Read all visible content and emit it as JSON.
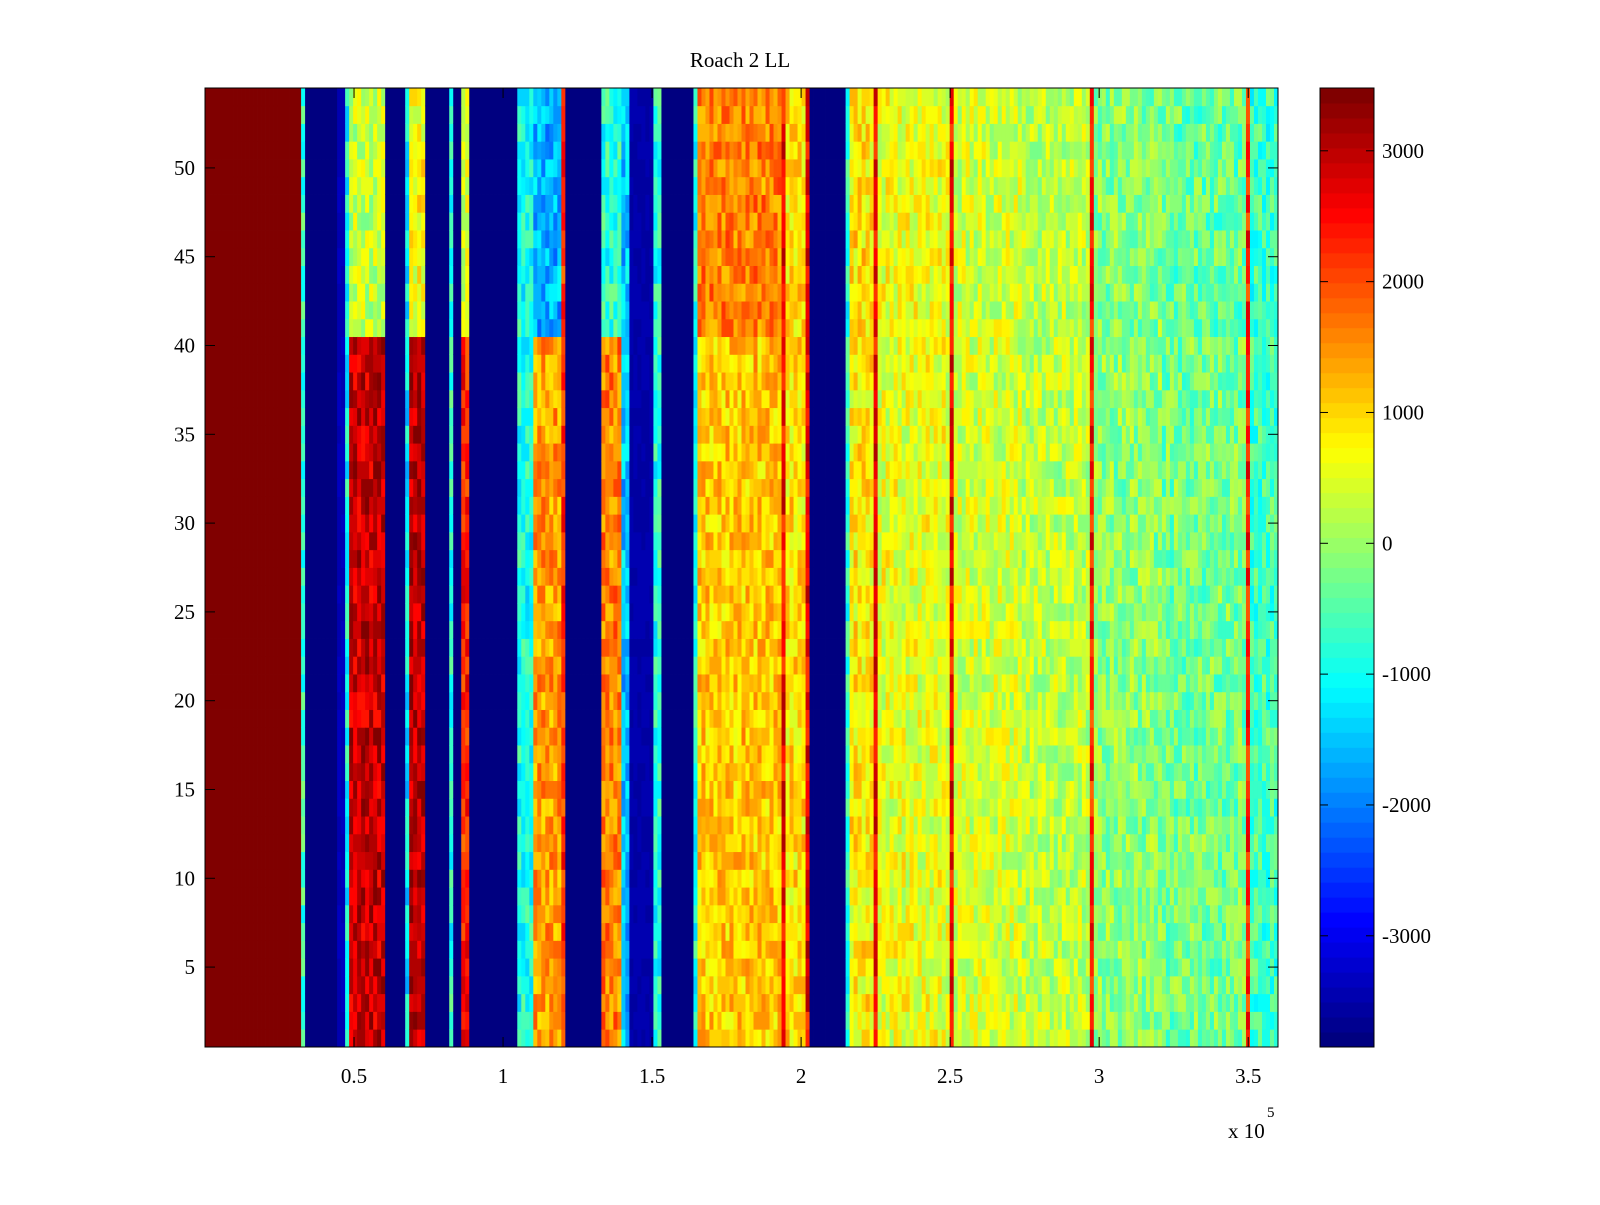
{
  "chart_data": {
    "type": "heatmap",
    "title": "Roach 2 LL",
    "xlabel": "",
    "ylabel": "",
    "x_exponent_label": "x 10",
    "x_exponent": "5",
    "xlim": [
      0,
      360000
    ],
    "ylim": [
      0.5,
      54.5
    ],
    "rows": 54,
    "xticks": [
      50000,
      100000,
      150000,
      200000,
      250000,
      300000,
      350000
    ],
    "xtick_labels": [
      "0.5",
      "1",
      "1.5",
      "2",
      "2.5",
      "3",
      "3.5"
    ],
    "yticks": [
      5,
      10,
      15,
      20,
      25,
      30,
      35,
      40,
      45,
      50
    ],
    "ytick_labels": [
      "5",
      "10",
      "15",
      "20",
      "25",
      "30",
      "35",
      "40",
      "45",
      "50"
    ],
    "colormap": "jet",
    "clim": [
      -3850,
      3480
    ],
    "colorbar_ticks": [
      -3000,
      -2000,
      -1000,
      0,
      1000,
      2000,
      3000
    ],
    "colorbar_tick_labels": [
      "-3000",
      "-2000",
      "-1000",
      "0",
      "1000",
      "2000",
      "3000"
    ],
    "noise_amplitude": 550,
    "column_profile_note": "segments: [x_start, x_end, value_rows_1_to_40, value_rows_41_to_54]",
    "column_profile": [
      [
        0,
        32000,
        3480,
        3480
      ],
      [
        32000,
        33500,
        -700,
        -700
      ],
      [
        33500,
        44000,
        -3850,
        -3850
      ],
      [
        44000,
        45000,
        600,
        600
      ],
      [
        45000,
        46500,
        -3400,
        -3400
      ],
      [
        46500,
        48500,
        -1000,
        -1000
      ],
      [
        48500,
        61000,
        2900,
        300
      ],
      [
        61000,
        67500,
        -3850,
        -3850
      ],
      [
        67500,
        68500,
        -1200,
        -1200
      ],
      [
        68500,
        74500,
        3000,
        700
      ],
      [
        74500,
        82000,
        -3850,
        -3850
      ],
      [
        82000,
        83000,
        -800,
        -800
      ],
      [
        83000,
        85500,
        -3850,
        -3850
      ],
      [
        85500,
        88000,
        2300,
        500
      ],
      [
        88000,
        104500,
        -3850,
        -3850
      ],
      [
        104500,
        109500,
        -900,
        -900
      ],
      [
        109500,
        120000,
        1400,
        -1600
      ],
      [
        120000,
        121500,
        2200,
        2200
      ],
      [
        121500,
        132500,
        -3850,
        -3850
      ],
      [
        132500,
        140000,
        1600,
        -800
      ],
      [
        140000,
        142000,
        -1500,
        -1500
      ],
      [
        142000,
        151000,
        -3500,
        -3500
      ],
      [
        151000,
        153000,
        -800,
        -800
      ],
      [
        153000,
        164000,
        -3850,
        -3850
      ],
      [
        164000,
        165500,
        -900,
        -900
      ],
      [
        165500,
        193500,
        1100,
        1600
      ],
      [
        193500,
        194500,
        2600,
        2600
      ],
      [
        194500,
        201500,
        900,
        900
      ],
      [
        201500,
        202500,
        2600,
        2600
      ],
      [
        202500,
        203500,
        -1500,
        -1500
      ],
      [
        203500,
        215000,
        -3850,
        -3850
      ],
      [
        215000,
        216500,
        -800,
        -800
      ],
      [
        216500,
        225000,
        800,
        900
      ],
      [
        225000,
        226000,
        2600,
        2600
      ],
      [
        226000,
        250000,
        550,
        600
      ],
      [
        250000,
        251000,
        2600,
        2600
      ],
      [
        251000,
        273500,
        400,
        400
      ],
      [
        273500,
        274500,
        2700,
        2700
      ],
      [
        274500,
        297500,
        250,
        250
      ],
      [
        297500,
        298500,
        2400,
        2400
      ],
      [
        298500,
        320500,
        -100,
        -150
      ],
      [
        320500,
        321500,
        2300,
        2300
      ],
      [
        321500,
        349000,
        -250,
        -350
      ],
      [
        349000,
        350000,
        2300,
        2300
      ],
      [
        350000,
        360000,
        -600,
        -700
      ]
    ]
  }
}
